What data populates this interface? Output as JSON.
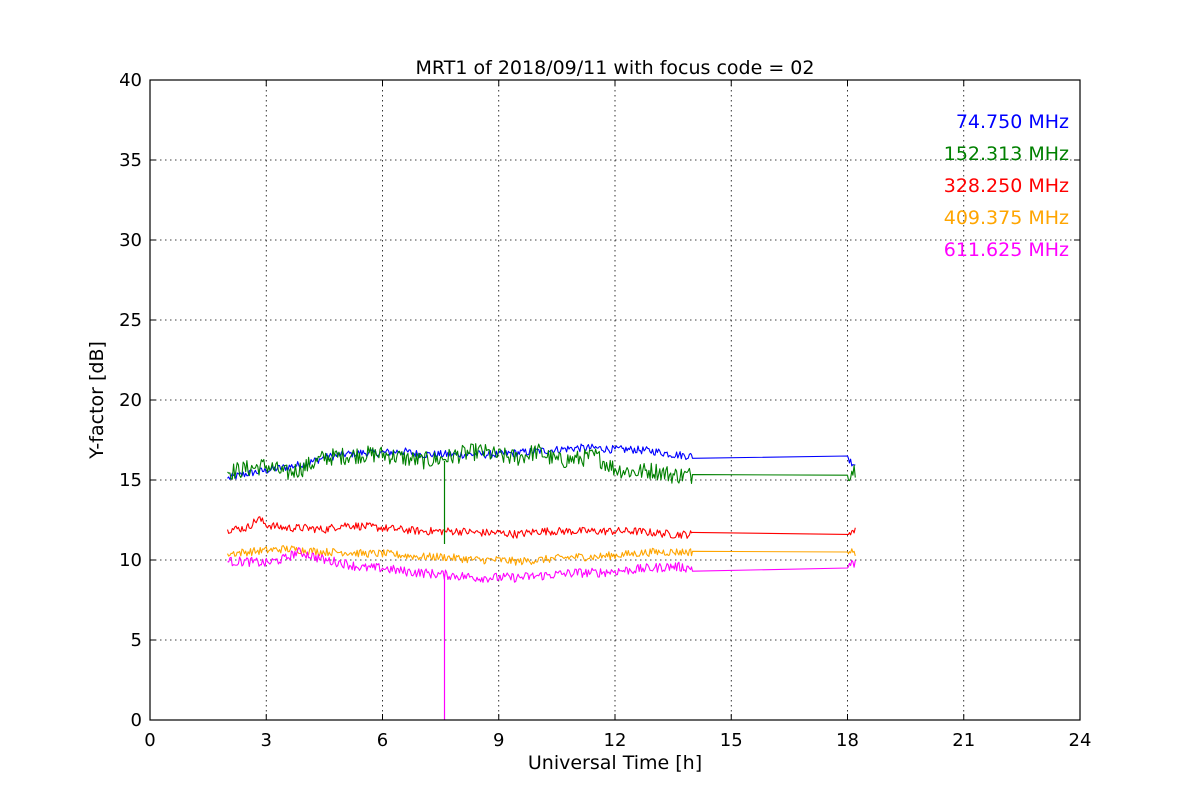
{
  "chart_data": {
    "type": "line",
    "title": "MRT1 of 2018/09/11 with focus code = 02",
    "xlabel": "Universal Time [h]",
    "ylabel": "Y-factor [dB]",
    "xlim": [
      0,
      24
    ],
    "ylim": [
      0,
      40
    ],
    "xticks": [
      0,
      3,
      6,
      9,
      12,
      15,
      18,
      21,
      24
    ],
    "yticks": [
      0,
      5,
      10,
      15,
      20,
      25,
      30,
      35,
      40
    ],
    "grid": true,
    "legend_position": "top-right",
    "series": [
      {
        "name": "74.750 MHz",
        "color": "#0000ff",
        "noise": 0.25,
        "points": [
          [
            2.0,
            15.1
          ],
          [
            2.5,
            15.4
          ],
          [
            3.0,
            15.6
          ],
          [
            3.5,
            15.8
          ],
          [
            4.0,
            16.0
          ],
          [
            4.5,
            16.4
          ],
          [
            5.0,
            16.6
          ],
          [
            5.5,
            16.7
          ],
          [
            6.0,
            16.7
          ],
          [
            6.5,
            16.8
          ],
          [
            7.0,
            16.6
          ],
          [
            7.5,
            16.6
          ],
          [
            8.0,
            16.6
          ],
          [
            8.5,
            16.6
          ],
          [
            9.0,
            16.6
          ],
          [
            9.5,
            16.7
          ],
          [
            10.0,
            16.8
          ],
          [
            10.5,
            16.9
          ],
          [
            11.0,
            17.0
          ],
          [
            11.5,
            17.0
          ],
          [
            12.0,
            16.9
          ],
          [
            12.5,
            16.9
          ],
          [
            13.0,
            16.8
          ],
          [
            13.5,
            16.6
          ],
          [
            13.95,
            16.5
          ],
          [
            14.0,
            16.5
          ],
          [
            18.0,
            16.5
          ],
          [
            18.05,
            16.2
          ],
          [
            18.2,
            16.0
          ]
        ]
      },
      {
        "name": "152.313 MHz",
        "color": "#008000",
        "noise": 0.55,
        "points": [
          [
            2.0,
            15.5
          ],
          [
            2.5,
            15.7
          ],
          [
            3.0,
            15.9
          ],
          [
            3.5,
            15.4
          ],
          [
            4.0,
            15.8
          ],
          [
            4.5,
            16.4
          ],
          [
            5.0,
            16.5
          ],
          [
            5.5,
            16.6
          ],
          [
            6.0,
            16.6
          ],
          [
            6.5,
            16.4
          ],
          [
            7.0,
            16.2
          ],
          [
            7.5,
            16.3
          ],
          [
            8.0,
            16.6
          ],
          [
            8.5,
            16.8
          ],
          [
            9.0,
            16.5
          ],
          [
            9.5,
            16.4
          ],
          [
            10.0,
            16.8
          ],
          [
            10.5,
            16.2
          ],
          [
            11.0,
            16.3
          ],
          [
            11.5,
            16.5
          ],
          [
            12.0,
            15.7
          ],
          [
            12.5,
            15.5
          ],
          [
            13.0,
            15.6
          ],
          [
            13.5,
            15.3
          ],
          [
            13.95,
            15.3
          ],
          [
            14.0,
            15.3
          ],
          [
            18.0,
            15.3
          ],
          [
            18.05,
            15.5
          ],
          [
            18.2,
            15.7
          ]
        ]
      },
      {
        "name": "328.250 MHz",
        "color": "#ff0000",
        "noise": 0.25,
        "points": [
          [
            2.0,
            11.9
          ],
          [
            2.5,
            12.0
          ],
          [
            2.8,
            12.6
          ],
          [
            3.0,
            12.2
          ],
          [
            3.5,
            12.0
          ],
          [
            4.0,
            12.0
          ],
          [
            4.5,
            11.9
          ],
          [
            5.0,
            12.2
          ],
          [
            5.5,
            12.1
          ],
          [
            6.0,
            12.0
          ],
          [
            6.5,
            11.9
          ],
          [
            7.0,
            11.8
          ],
          [
            7.5,
            11.8
          ],
          [
            8.0,
            11.8
          ],
          [
            8.5,
            11.7
          ],
          [
            9.0,
            11.7
          ],
          [
            9.5,
            11.6
          ],
          [
            10.0,
            11.8
          ],
          [
            10.5,
            11.8
          ],
          [
            11.0,
            11.8
          ],
          [
            11.5,
            11.8
          ],
          [
            12.0,
            11.8
          ],
          [
            12.5,
            11.8
          ],
          [
            13.0,
            11.7
          ],
          [
            13.5,
            11.6
          ],
          [
            13.95,
            11.6
          ],
          [
            14.0,
            11.6
          ],
          [
            18.0,
            11.6
          ],
          [
            18.05,
            11.8
          ],
          [
            18.2,
            11.8
          ]
        ]
      },
      {
        "name": "409.375 MHz",
        "color": "#ffa500",
        "noise": 0.25,
        "points": [
          [
            2.0,
            10.4
          ],
          [
            2.5,
            10.5
          ],
          [
            3.0,
            10.6
          ],
          [
            3.5,
            10.7
          ],
          [
            4.0,
            10.6
          ],
          [
            4.5,
            10.5
          ],
          [
            5.0,
            10.5
          ],
          [
            5.5,
            10.4
          ],
          [
            6.0,
            10.4
          ],
          [
            6.5,
            10.3
          ],
          [
            7.0,
            10.2
          ],
          [
            7.5,
            10.2
          ],
          [
            8.0,
            10.1
          ],
          [
            8.5,
            10.0
          ],
          [
            9.0,
            10.0
          ],
          [
            9.5,
            9.9
          ],
          [
            10.0,
            10.0
          ],
          [
            10.5,
            10.1
          ],
          [
            11.0,
            10.2
          ],
          [
            11.5,
            10.2
          ],
          [
            12.0,
            10.3
          ],
          [
            12.5,
            10.4
          ],
          [
            13.0,
            10.5
          ],
          [
            13.5,
            10.5
          ],
          [
            13.95,
            10.5
          ],
          [
            14.0,
            10.5
          ],
          [
            18.0,
            10.5
          ],
          [
            18.05,
            10.5
          ],
          [
            18.2,
            10.5
          ]
        ]
      },
      {
        "name": "611.625 MHz",
        "color": "#ff00ff",
        "noise": 0.3,
        "points": [
          [
            2.0,
            9.9
          ],
          [
            2.5,
            9.9
          ],
          [
            3.0,
            9.8
          ],
          [
            3.5,
            10.1
          ],
          [
            3.8,
            10.5
          ],
          [
            4.0,
            10.4
          ],
          [
            4.5,
            10.0
          ],
          [
            5.0,
            9.8
          ],
          [
            5.5,
            9.5
          ],
          [
            6.0,
            9.5
          ],
          [
            6.5,
            9.3
          ],
          [
            7.0,
            9.2
          ],
          [
            7.5,
            9.1
          ],
          [
            8.0,
            9.0
          ],
          [
            8.5,
            8.9
          ],
          [
            9.0,
            8.9
          ],
          [
            9.5,
            8.9
          ],
          [
            10.0,
            9.0
          ],
          [
            10.5,
            9.1
          ],
          [
            11.0,
            9.2
          ],
          [
            11.5,
            9.2
          ],
          [
            12.0,
            9.3
          ],
          [
            12.5,
            9.4
          ],
          [
            13.0,
            9.5
          ],
          [
            13.5,
            9.6
          ],
          [
            13.95,
            9.5
          ],
          [
            14.0,
            9.5
          ],
          [
            18.0,
            9.5
          ],
          [
            18.05,
            9.7
          ],
          [
            18.2,
            9.8
          ]
        ]
      }
    ],
    "spikes": [
      {
        "series": "611.625 MHz",
        "color": "#ff00ff",
        "x": 7.6,
        "from": 9.1,
        "to": 0
      },
      {
        "series": "152.313 MHz",
        "color": "#008000",
        "x": 7.6,
        "from": 16.2,
        "to": 11.0
      }
    ]
  }
}
